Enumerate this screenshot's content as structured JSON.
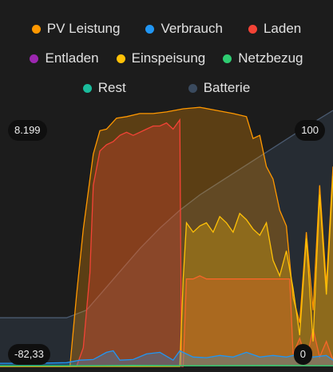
{
  "chart_data": {
    "type": "area",
    "legend_position": "top",
    "legend": [
      {
        "key": "pv",
        "label": "PV Leistung",
        "color": "#ff9800"
      },
      {
        "key": "verbrauch",
        "label": "Verbrauch",
        "color": "#2196f3"
      },
      {
        "key": "laden",
        "label": "Laden",
        "color": "#f44336"
      },
      {
        "key": "entladen",
        "label": "Entladen",
        "color": "#9c27b0"
      },
      {
        "key": "einspeisung",
        "label": "Einspeisung",
        "color": "#ffc107"
      },
      {
        "key": "netzbezug",
        "label": "Netzbezug",
        "color": "#2ecc71"
      },
      {
        "key": "rest",
        "label": "Rest",
        "color": "#1abc9c"
      },
      {
        "key": "batterie",
        "label": "Batterie",
        "color": "#3a4a5e"
      }
    ],
    "y_left": {
      "max_label": "8.199",
      "min_label": "-82,33",
      "range": [
        0,
        8.199
      ]
    },
    "y_right": {
      "max_label": "100",
      "min_label": "0",
      "range": [
        0,
        100
      ]
    },
    "series": [
      {
        "name": "PV Leistung",
        "x": [
          0,
          0.21,
          0.23,
          0.25,
          0.28,
          0.3,
          0.32,
          0.35,
          0.38,
          0.42,
          0.46,
          0.5,
          0.55,
          0.6,
          0.65,
          0.7,
          0.74,
          0.76,
          0.78,
          0.8,
          0.82,
          0.84,
          0.86,
          0.88,
          0.9,
          0.92,
          0.94,
          0.96,
          0.98,
          1.0
        ],
        "values": [
          0,
          0,
          2.3,
          4.4,
          6.8,
          7.55,
          7.6,
          7.95,
          8.0,
          8.1,
          8.1,
          8.15,
          8.25,
          8.3,
          8.2,
          8.1,
          8.0,
          7.3,
          7.4,
          6.4,
          6.0,
          5.0,
          4.5,
          2.2,
          1.4,
          4.3,
          1.8,
          5.8,
          2.6,
          6.4
        ]
      },
      {
        "name": "Laden",
        "x": [
          0,
          0.23,
          0.25,
          0.27,
          0.28,
          0.3,
          0.32,
          0.34,
          0.36,
          0.38,
          0.4,
          0.42,
          0.44,
          0.46,
          0.48,
          0.5,
          0.52,
          0.54,
          0.545,
          0.55,
          0.56,
          0.58,
          0.6,
          0.62,
          0.7,
          0.8,
          0.87,
          0.88,
          0.9,
          0.92,
          0.94,
          0.96,
          0.98,
          1.0
        ],
        "values": [
          0,
          0,
          0.6,
          3.0,
          5.8,
          6.9,
          7.1,
          7.2,
          7.4,
          7.5,
          7.4,
          7.5,
          7.6,
          7.7,
          7.7,
          7.8,
          7.6,
          7.9,
          0.0,
          0.0,
          2.8,
          2.8,
          2.9,
          2.8,
          2.8,
          2.8,
          2.8,
          0.4,
          0.9,
          0.2,
          1.2,
          0.3,
          0.8,
          0.2
        ]
      },
      {
        "name": "Einspeisung",
        "x": [
          0,
          0.54,
          0.55,
          0.56,
          0.58,
          0.6,
          0.62,
          0.64,
          0.66,
          0.68,
          0.7,
          0.72,
          0.74,
          0.76,
          0.78,
          0.8,
          0.82,
          0.84,
          0.86,
          0.88,
          0.9,
          0.92,
          0.94,
          0.96,
          0.98,
          1.0
        ],
        "values": [
          0,
          0,
          2.8,
          4.6,
          4.3,
          4.5,
          4.6,
          4.3,
          4.8,
          4.6,
          4.3,
          4.9,
          4.7,
          4.4,
          4.2,
          4.6,
          3.4,
          2.9,
          3.7,
          2.5,
          1.0,
          4.1,
          0.8,
          5.5,
          2.3,
          6.1
        ]
      },
      {
        "name": "Verbrauch",
        "x": [
          0,
          0.1,
          0.2,
          0.24,
          0.28,
          0.32,
          0.34,
          0.36,
          0.4,
          0.44,
          0.48,
          0.52,
          0.54,
          0.58,
          0.62,
          0.66,
          0.7,
          0.74,
          0.78,
          0.82,
          0.86,
          0.9,
          0.94,
          0.98,
          1.0
        ],
        "values": [
          0.1,
          0.1,
          0.12,
          0.2,
          0.22,
          0.45,
          0.5,
          0.2,
          0.22,
          0.4,
          0.45,
          0.2,
          0.5,
          0.3,
          0.28,
          0.35,
          0.3,
          0.45,
          0.3,
          0.35,
          0.3,
          0.4,
          0.3,
          0.35,
          0.2
        ]
      },
      {
        "name": "Netzbezug",
        "x": [
          0,
          0.2,
          0.4,
          0.6,
          0.8,
          1.0
        ],
        "values": [
          0.02,
          0.02,
          0.03,
          0.02,
          0.03,
          0.02
        ]
      },
      {
        "name": "Batterie",
        "axis": "right",
        "x": [
          0,
          0.2,
          0.26,
          0.3,
          0.36,
          0.42,
          0.48,
          0.54,
          0.6,
          0.66,
          0.72,
          0.78,
          0.84,
          0.9,
          0.95,
          1.0
        ],
        "values": [
          19,
          19,
          22,
          28,
          37,
          46,
          54,
          61,
          67,
          72,
          77,
          82,
          87,
          92,
          96,
          100
        ]
      }
    ]
  }
}
